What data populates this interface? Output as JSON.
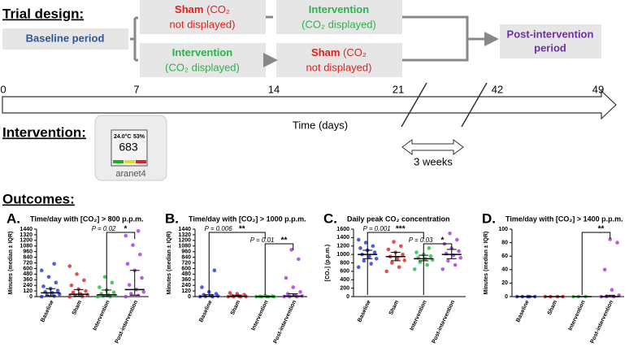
{
  "design": {
    "title": "Trial design:",
    "baseline": "Baseline period",
    "arms": [
      {
        "bold": "Sham",
        "rest": " (CO₂",
        "line2": "not displayed)",
        "color": "#e0201b"
      },
      {
        "bold": "Intervention",
        "rest": "",
        "line2": "(CO₂ displayed)",
        "color": "#2ab34a"
      },
      {
        "bold": "Intervention",
        "rest": "",
        "line2": "(CO₂ displayed)",
        "color": "#2ab34a"
      },
      {
        "bold": "Sham",
        "rest": " (CO₂",
        "line2": "not displayed)",
        "color": "#e0201b"
      }
    ],
    "post": [
      "Post-intervention",
      "period"
    ]
  },
  "timeline": {
    "ticks": [
      0,
      7,
      14,
      21,
      42,
      49
    ],
    "label": "Time (days)",
    "gap": "3 weeks"
  },
  "intervention": {
    "title": "Intervention:",
    "temp": "24.0°C",
    "humidity": "53%",
    "reading": "683",
    "brand": "aranet4"
  },
  "outcomes": {
    "title": "Outcomes:"
  },
  "chart_data": [
    {
      "type": "strip",
      "panel": "A.",
      "title": "Time/day with [CO₂] > 800 p.p.m.",
      "ylabel": "Minutes (median ± IQR)",
      "categories": [
        "Baseline",
        "Sham",
        "Intervention",
        "Post-intervention"
      ],
      "colors": [
        "#2233dd",
        "#e02020",
        "#22bb33",
        "#aa33dd"
      ],
      "values": [
        [
          0,
          10,
          30,
          50,
          80,
          100,
          130,
          170,
          220,
          300,
          420,
          560,
          700
        ],
        [
          0,
          5,
          20,
          40,
          60,
          90,
          120,
          160,
          240,
          350,
          480,
          650
        ],
        [
          0,
          0,
          10,
          20,
          40,
          60,
          90,
          140,
          200,
          300,
          420
        ],
        [
          0,
          20,
          60,
          100,
          150,
          250,
          400,
          560,
          700,
          900,
          1100,
          1300,
          1400
        ]
      ],
      "medians": [
        80,
        50,
        40,
        150
      ],
      "iqr": [
        [
          20,
          170
        ],
        [
          10,
          150
        ],
        [
          5,
          140
        ],
        [
          30,
          560
        ]
      ],
      "ylim": [
        0,
        1440
      ],
      "yticks": [
        0,
        120,
        240,
        360,
        480,
        600,
        720,
        840,
        960,
        1080,
        1200,
        1320,
        1440
      ],
      "annotations": [
        {
          "between": [
            "Intervention",
            "Post-intervention"
          ],
          "label": "*",
          "p": "P = 0.02"
        }
      ]
    },
    {
      "type": "strip",
      "panel": "B.",
      "title": "Time/day with [CO₂] > 1000 p.p.m.",
      "ylabel": "Minutes (median ± IQR)",
      "categories": [
        "Baseline",
        "Sham",
        "Intervention",
        "Post-intervention"
      ],
      "colors": [
        "#2233dd",
        "#e02020",
        "#22bb33",
        "#aa33dd"
      ],
      "values": [
        [
          0,
          0,
          5,
          10,
          20,
          40,
          60,
          100,
          200,
          560
        ],
        [
          0,
          0,
          0,
          5,
          10,
          20,
          40,
          60,
          80
        ],
        [
          0,
          0,
          0,
          0,
          0,
          5,
          10,
          20
        ],
        [
          0,
          0,
          0,
          10,
          30,
          60,
          100,
          200,
          400,
          800,
          1000
        ]
      ],
      "medians": [
        5,
        5,
        0,
        10
      ],
      "iqr": [
        [
          0,
          40
        ],
        [
          0,
          30
        ],
        [
          0,
          5
        ],
        [
          0,
          60
        ]
      ],
      "ylim": [
        0,
        1440
      ],
      "yticks": [
        0,
        120,
        240,
        360,
        480,
        600,
        720,
        840,
        960,
        1080,
        1200,
        1320,
        1440
      ],
      "annotations": [
        {
          "between": [
            "Baseline",
            "Intervention"
          ],
          "label": "**",
          "p": "P = 0.006"
        },
        {
          "between": [
            "Intervention",
            "Post-intervention"
          ],
          "label": "**",
          "p": "P = 0.01"
        }
      ]
    },
    {
      "type": "strip",
      "panel": "C.",
      "title": "Daily peak CO₂ concentration",
      "ylabel": "[CO₂] (p.p.m.)",
      "categories": [
        "Baseline",
        "Sham",
        "Intervention",
        "Post-intervention"
      ],
      "colors": [
        "#2233dd",
        "#e02020",
        "#22bb33",
        "#aa33dd"
      ],
      "values": [
        [
          700,
          780,
          850,
          900,
          950,
          1000,
          1050,
          1100,
          1150,
          1200,
          1280,
          1350
        ],
        [
          600,
          700,
          800,
          860,
          900,
          950,
          1000,
          1050,
          1120,
          1200,
          1300
        ],
        [
          650,
          750,
          820,
          870,
          900,
          920,
          960,
          1000,
          1050,
          1150
        ],
        [
          650,
          750,
          850,
          920,
          980,
          1020,
          1080,
          1150,
          1250,
          1350,
          1500
        ]
      ],
      "medians": [
        1000,
        950,
        900,
        1000
      ],
      "iqr": [
        [
          900,
          1100
        ],
        [
          850,
          1050
        ],
        [
          850,
          980
        ],
        [
          900,
          1120
        ]
      ],
      "ylim": [
        0,
        1600
      ],
      "yticks": [
        0,
        200,
        400,
        600,
        800,
        1000,
        1200,
        1400,
        1600
      ],
      "annotations": [
        {
          "between": [
            "Baseline",
            "Intervention"
          ],
          "label": "***",
          "p": "P = 0.001"
        },
        {
          "between": [
            "Intervention",
            "Post-intervention"
          ],
          "label": "*",
          "p": "P = 0.03"
        }
      ]
    },
    {
      "type": "strip",
      "panel": "D.",
      "title": "Time/day with [CO₂] > 1400 p.p.m.",
      "ylabel": "Minutes (median ± IQR)",
      "categories": [
        "Baseline",
        "Sham",
        "Intervention",
        "Post-intervention"
      ],
      "colors": [
        "#2233dd",
        "#e02020",
        "#22bb33",
        "#aa33dd"
      ],
      "values": [
        [
          0,
          0,
          0,
          0,
          0
        ],
        [
          0,
          0,
          0,
          0
        ],
        [
          0,
          0,
          0
        ],
        [
          0,
          0,
          0,
          2,
          10,
          40,
          80,
          85
        ]
      ],
      "medians": [
        0,
        0,
        0,
        0
      ],
      "iqr": [
        [
          0,
          0
        ],
        [
          0,
          0
        ],
        [
          0,
          0
        ],
        [
          0,
          2
        ]
      ],
      "ylim": [
        0,
        100
      ],
      "yticks": [
        0,
        20,
        40,
        60,
        80,
        100
      ],
      "annotations": [
        {
          "between": [
            "Intervention",
            "Post-intervention"
          ],
          "label": "**"
        }
      ]
    }
  ]
}
